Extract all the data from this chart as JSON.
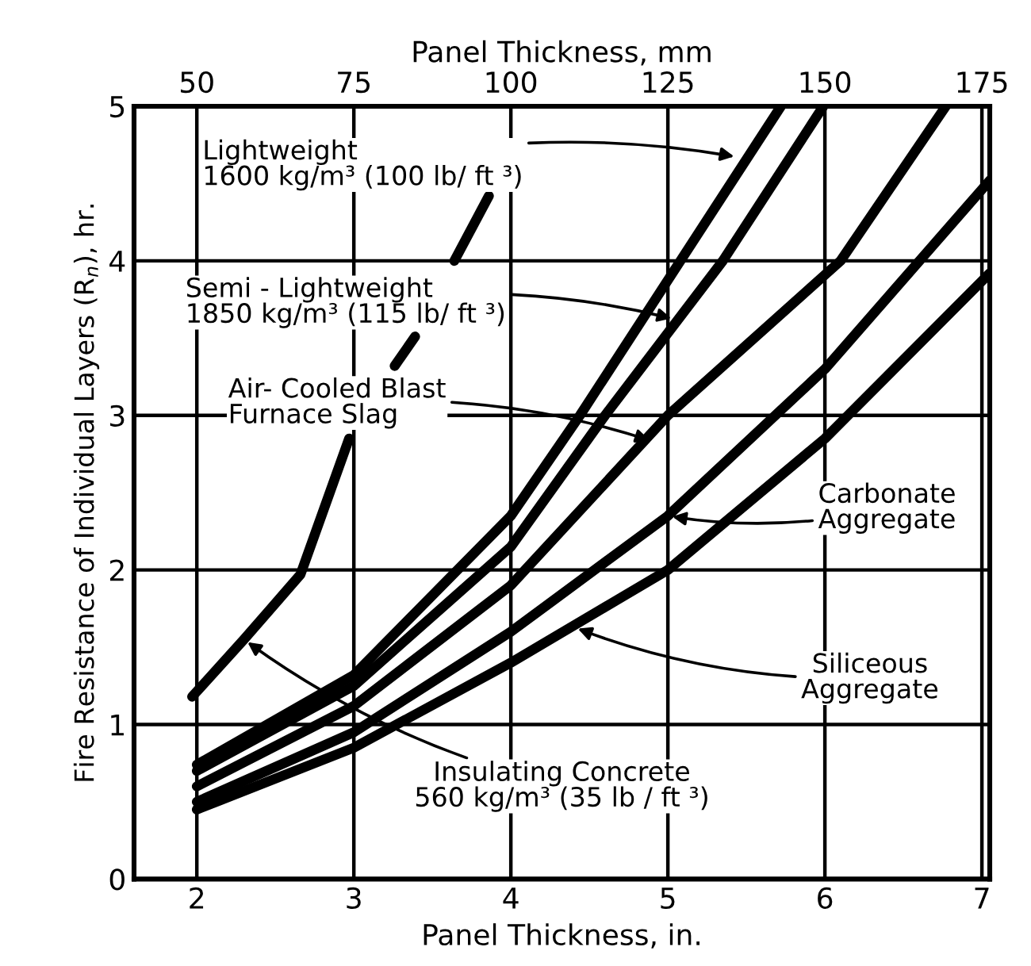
{
  "chart_data": {
    "type": "line",
    "xlabel": "Panel Thickness, in.",
    "x2label": "Panel Thickness, mm",
    "ylabel": "Fire Resistance of Individual Layers (R$_{n}$), hr.",
    "xlim": [
      1.6,
      7.05
    ],
    "xticks": [
      2,
      3,
      4,
      5,
      6,
      7
    ],
    "x2lim": [
      40,
      176.25
    ],
    "x2ticks": [
      50,
      75,
      100,
      125,
      150,
      175
    ],
    "ylim": [
      0,
      5
    ],
    "yticks": [
      0,
      1,
      2,
      3,
      4,
      5
    ],
    "grid": true,
    "line_style": "solid",
    "marker": "none",
    "series": [
      {
        "color": "#000000",
        "x": [
          1.97,
          2.3,
          2.66,
          2.97,
          3.1,
          3.26,
          3.39,
          3.5,
          3.64,
          3.86
        ],
        "values": [
          1.18,
          1.55,
          1.97,
          2.85,
          null,
          3.32,
          3.51,
          null,
          4.0,
          4.42
        ]
      },
      {
        "color": "#000000",
        "x": [
          2,
          3,
          4,
          4.44,
          5.08,
          5.72
        ],
        "values": [
          0.74,
          1.32,
          2.35,
          3.0,
          4.0,
          5.0
        ]
      },
      {
        "color": "#000000",
        "x": [
          2,
          3,
          4,
          4.6,
          5.35,
          5.99
        ],
        "values": [
          0.7,
          1.25,
          2.15,
          3.0,
          4.0,
          5.0
        ]
      },
      {
        "color": "#000000",
        "x": [
          2,
          3,
          4,
          5,
          6.1,
          6.77
        ],
        "values": [
          0.6,
          1.12,
          1.9,
          3.0,
          4.0,
          5.0
        ]
      },
      {
        "color": "#000000",
        "x": [
          2,
          3,
          4,
          5,
          6,
          7.05
        ],
        "values": [
          0.5,
          0.95,
          1.6,
          2.35,
          3.3,
          4.52
        ]
      },
      {
        "color": "#000000",
        "x": [
          2,
          3,
          4,
          5,
          6,
          7.05
        ],
        "values": [
          0.45,
          0.85,
          1.4,
          2.0,
          2.85,
          3.92
        ]
      }
    ],
    "annotations": [
      {
        "text": "Lightweight\n1600 kg/m³ (100 lb/ ft ³)",
        "x": 5.45,
        "y": 4.67
      },
      {
        "text": "Semi - Lightweight\n1850 kg/m³ (115 lb/ ft ³)",
        "x": 5.05,
        "y": 3.62
      },
      {
        "text": "Air- Cooled Blast\nFurnace Slag",
        "x": 4.91,
        "y": 2.83
      },
      {
        "text": "Carbonate\nAggregate",
        "x": 5,
        "y": 2.35
      },
      {
        "text": "Siliceous\nAggregate",
        "x": 4.4,
        "y": 1.63
      },
      {
        "text": "Insulating Concrete\n560 kg/m³ (35 lb / ft ³)",
        "x": 2.3,
        "y": 1.55
      }
    ]
  }
}
